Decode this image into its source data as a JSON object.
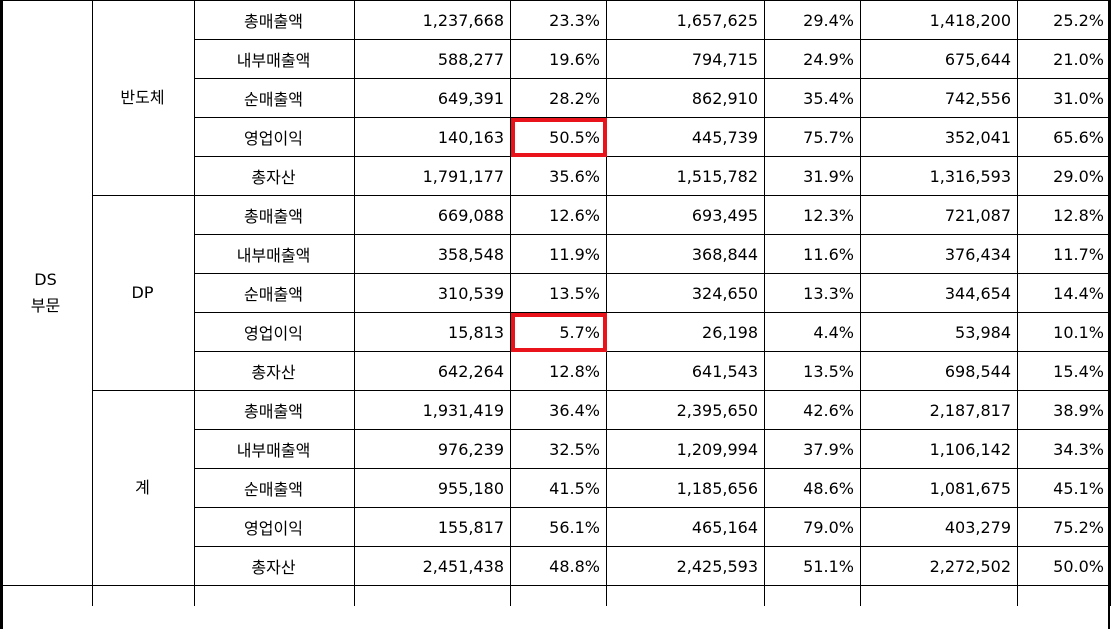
{
  "division": "DS\n부문",
  "groups": [
    {
      "name": "반도체",
      "rows": [
        {
          "label": "총매출액",
          "v1": "1,237,668",
          "p1": "23.3%",
          "v2": "1,657,625",
          "p2": "29.4%",
          "v3": "1,418,200",
          "p3": "25.2%"
        },
        {
          "label": "내부매출액",
          "v1": "588,277",
          "p1": "19.6%",
          "v2": "794,715",
          "p2": "24.9%",
          "v3": "675,644",
          "p3": "21.0%"
        },
        {
          "label": "순매출액",
          "v1": "649,391",
          "p1": "28.2%",
          "v2": "862,910",
          "p2": "35.4%",
          "v3": "742,556",
          "p3": "31.0%"
        },
        {
          "label": "영업이익",
          "v1": "140,163",
          "p1": "50.5%",
          "v2": "445,739",
          "p2": "75.7%",
          "v3": "352,041",
          "p3": "65.6%"
        },
        {
          "label": "총자산",
          "v1": "1,791,177",
          "p1": "35.6%",
          "v2": "1,515,782",
          "p2": "31.9%",
          "v3": "1,316,593",
          "p3": "29.0%"
        }
      ]
    },
    {
      "name": "DP",
      "rows": [
        {
          "label": "총매출액",
          "v1": "669,088",
          "p1": "12.6%",
          "v2": "693,495",
          "p2": "12.3%",
          "v3": "721,087",
          "p3": "12.8%"
        },
        {
          "label": "내부매출액",
          "v1": "358,548",
          "p1": "11.9%",
          "v2": "368,844",
          "p2": "11.6%",
          "v3": "376,434",
          "p3": "11.7%"
        },
        {
          "label": "순매출액",
          "v1": "310,539",
          "p1": "13.5%",
          "v2": "324,650",
          "p2": "13.3%",
          "v3": "344,654",
          "p3": "14.4%"
        },
        {
          "label": "영업이익",
          "v1": "15,813",
          "p1": "5.7%",
          "v2": "26,198",
          "p2": "4.4%",
          "v3": "53,984",
          "p3": "10.1%"
        },
        {
          "label": "총자산",
          "v1": "642,264",
          "p1": "12.8%",
          "v2": "641,543",
          "p2": "13.5%",
          "v3": "698,544",
          "p3": "15.4%"
        }
      ]
    },
    {
      "name": "계",
      "rows": [
        {
          "label": "총매출액",
          "v1": "1,931,419",
          "p1": "36.4%",
          "v2": "2,395,650",
          "p2": "42.6%",
          "v3": "2,187,817",
          "p3": "38.9%"
        },
        {
          "label": "내부매출액",
          "v1": "976,239",
          "p1": "32.5%",
          "v2": "1,209,994",
          "p2": "37.9%",
          "v3": "1,106,142",
          "p3": "34.3%"
        },
        {
          "label": "순매출액",
          "v1": "955,180",
          "p1": "41.5%",
          "v2": "1,185,656",
          "p2": "48.6%",
          "v3": "1,081,675",
          "p3": "45.1%"
        },
        {
          "label": "영업이익",
          "v1": "155,817",
          "p1": "56.1%",
          "v2": "465,164",
          "p2": "79.0%",
          "v3": "403,279",
          "p3": "75.2%"
        },
        {
          "label": "총자산",
          "v1": "2,451,438",
          "p1": "48.8%",
          "v2": "2,425,593",
          "p2": "51.1%",
          "v3": "2,272,502",
          "p3": "50.0%"
        }
      ]
    }
  ],
  "highlight_color": "#e8131b"
}
